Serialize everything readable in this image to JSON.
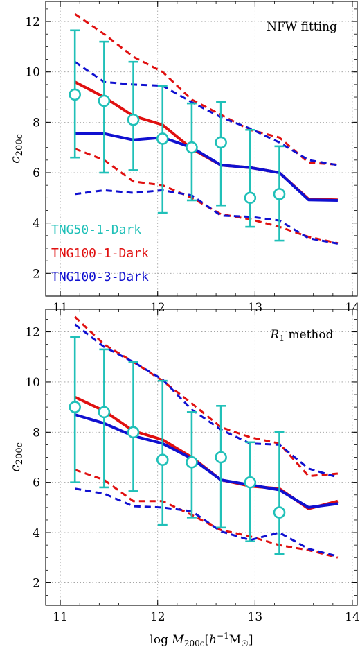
{
  "chart_data": [
    {
      "type": "line",
      "annotation": "NFW fitting",
      "ylabel": "c_200c",
      "xlabel": "",
      "xlim": [
        10.85,
        14.05
      ],
      "ylim": [
        1.1,
        12.8
      ],
      "xticks": [
        "11",
        "12",
        "13",
        "14"
      ],
      "yticks": [
        "2",
        "4",
        "6",
        "8",
        "10",
        "12"
      ],
      "grid": true,
      "legend": {
        "placement": "bottom-left",
        "entries": [
          {
            "label": "TNG50-1-Dark",
            "color": "#20c0b8"
          },
          {
            "label": "TNG100-1-Dark",
            "color": "#e01010"
          },
          {
            "label": "TNG100-3-Dark",
            "color": "#1010d0"
          }
        ]
      },
      "series": [
        {
          "name": "TNG100-1-Dark",
          "color": "#e01010",
          "style": "solid",
          "x": [
            11.15,
            11.45,
            11.75,
            12.05,
            12.35,
            12.65,
            12.95,
            13.25,
            13.55,
            13.85
          ],
          "y": [
            9.6,
            9.0,
            8.25,
            7.9,
            6.95,
            6.3,
            6.2,
            6.0,
            4.95,
            4.92
          ]
        },
        {
          "name": "TNG100-1-Dark upper",
          "color": "#e01010",
          "style": "dashed",
          "x": [
            11.15,
            11.45,
            11.75,
            12.05,
            12.35,
            12.65,
            12.95,
            13.25,
            13.55,
            13.85
          ],
          "y": [
            12.3,
            11.5,
            10.6,
            10.0,
            8.9,
            8.3,
            7.7,
            7.4,
            6.4,
            6.32
          ]
        },
        {
          "name": "TNG100-1-Dark lower",
          "color": "#e01010",
          "style": "dashed",
          "x": [
            11.15,
            11.45,
            11.75,
            12.05,
            12.35,
            12.65,
            12.95,
            13.25,
            13.55,
            13.85
          ],
          "y": [
            6.95,
            6.5,
            5.65,
            5.5,
            5.0,
            4.35,
            4.15,
            3.85,
            3.45,
            3.2
          ]
        },
        {
          "name": "TNG100-3-Dark",
          "color": "#1010d0",
          "style": "solid",
          "x": [
            11.15,
            11.45,
            11.75,
            12.05,
            12.35,
            12.65,
            12.95,
            13.25,
            13.55,
            13.85
          ],
          "y": [
            7.55,
            7.55,
            7.3,
            7.4,
            7.0,
            6.3,
            6.2,
            6.0,
            4.92,
            4.9
          ]
        },
        {
          "name": "TNG100-3-Dark upper",
          "color": "#1010d0",
          "style": "dashed",
          "x": [
            11.15,
            11.45,
            11.75,
            12.05,
            12.35,
            12.65,
            12.95,
            13.25,
            13.55,
            13.85
          ],
          "y": [
            10.4,
            9.6,
            9.5,
            9.45,
            8.8,
            8.2,
            7.75,
            7.2,
            6.5,
            6.3
          ]
        },
        {
          "name": "TNG100-3-Dark lower",
          "color": "#1010d0",
          "style": "dashed",
          "x": [
            11.15,
            11.45,
            11.75,
            12.05,
            12.35,
            12.65,
            12.95,
            13.25,
            13.55,
            13.85
          ],
          "y": [
            5.15,
            5.3,
            5.2,
            5.3,
            5.1,
            4.3,
            4.25,
            4.1,
            3.4,
            3.18
          ]
        },
        {
          "name": "TNG50-1-Dark",
          "color": "#20c0b8",
          "style": "errorbar",
          "x": [
            11.15,
            11.45,
            11.75,
            12.05,
            12.35,
            12.65,
            12.95,
            13.25
          ],
          "y": [
            9.1,
            8.85,
            8.1,
            7.35,
            7.0,
            7.2,
            5.0,
            5.15
          ],
          "err_low": [
            6.6,
            6.0,
            6.1,
            4.4,
            4.9,
            4.7,
            3.85,
            3.3
          ],
          "err_high": [
            11.65,
            11.2,
            10.4,
            9.45,
            8.75,
            8.8,
            7.7,
            7.05
          ]
        }
      ]
    },
    {
      "type": "line",
      "annotation": "R1 method",
      "ylabel": "c_200c",
      "xlabel": "log M_200c [h^-1 M_sun]",
      "xlim": [
        10.85,
        14.05
      ],
      "ylim": [
        1.1,
        12.9
      ],
      "xticks": [
        "11",
        "12",
        "13",
        "14"
      ],
      "yticks": [
        "2",
        "4",
        "6",
        "8",
        "10",
        "12"
      ],
      "grid": true,
      "series": [
        {
          "name": "TNG100-1-Dark",
          "color": "#e01010",
          "style": "solid",
          "x": [
            11.15,
            11.45,
            11.75,
            12.05,
            12.35,
            12.65,
            12.95,
            13.25,
            13.55,
            13.85
          ],
          "y": [
            9.4,
            8.85,
            8.05,
            7.7,
            7.0,
            6.1,
            5.85,
            5.75,
            4.95,
            5.25
          ]
        },
        {
          "name": "TNG100-1-Dark upper",
          "color": "#e01010",
          "style": "dashed",
          "x": [
            11.15,
            11.45,
            11.75,
            12.05,
            12.35,
            12.65,
            12.95,
            13.25,
            13.55,
            13.85
          ],
          "y": [
            12.6,
            11.5,
            10.8,
            10.05,
            9.15,
            8.2,
            7.8,
            7.55,
            6.25,
            6.35
          ]
        },
        {
          "name": "TNG100-1-Dark lower",
          "color": "#e01010",
          "style": "dashed",
          "x": [
            11.15,
            11.45,
            11.75,
            12.05,
            12.35,
            12.65,
            12.95,
            13.25,
            13.55,
            13.85
          ],
          "y": [
            6.5,
            6.1,
            5.25,
            5.25,
            4.7,
            4.1,
            3.85,
            3.5,
            3.3,
            3.0
          ]
        },
        {
          "name": "TNG100-3-Dark",
          "color": "#1010d0",
          "style": "solid",
          "x": [
            11.15,
            11.45,
            11.75,
            12.05,
            12.35,
            12.65,
            12.95,
            13.25,
            13.55,
            13.85
          ],
          "y": [
            8.7,
            8.35,
            7.85,
            7.55,
            6.95,
            6.1,
            5.9,
            5.7,
            5.0,
            5.15
          ]
        },
        {
          "name": "TNG100-3-Dark upper",
          "color": "#1010d0",
          "style": "dashed",
          "x": [
            11.15,
            11.45,
            11.75,
            12.05,
            12.35,
            12.65,
            12.95,
            13.25,
            13.55,
            13.85
          ],
          "y": [
            12.3,
            11.4,
            10.8,
            10.1,
            8.9,
            8.1,
            7.55,
            7.5,
            6.55,
            6.2
          ]
        },
        {
          "name": "TNG100-3-Dark lower",
          "color": "#1010d0",
          "style": "dashed",
          "x": [
            11.15,
            11.45,
            11.75,
            12.05,
            12.35,
            12.65,
            12.95,
            13.25,
            13.55,
            13.85
          ],
          "y": [
            5.75,
            5.55,
            5.05,
            5.0,
            4.85,
            4.05,
            3.7,
            4.0,
            3.35,
            3.05
          ]
        },
        {
          "name": "TNG50-1-Dark",
          "color": "#20c0b8",
          "style": "errorbar",
          "x": [
            11.15,
            11.45,
            11.75,
            12.05,
            12.35,
            12.65,
            12.95,
            13.25
          ],
          "y": [
            9.0,
            8.8,
            8.0,
            6.9,
            6.8,
            7.0,
            6.0,
            4.8
          ],
          "err_low": [
            6.0,
            5.8,
            5.65,
            4.3,
            4.6,
            4.2,
            3.65,
            3.15
          ],
          "err_high": [
            11.8,
            11.3,
            10.8,
            10.05,
            8.8,
            9.05,
            7.6,
            8.0
          ]
        }
      ]
    }
  ]
}
